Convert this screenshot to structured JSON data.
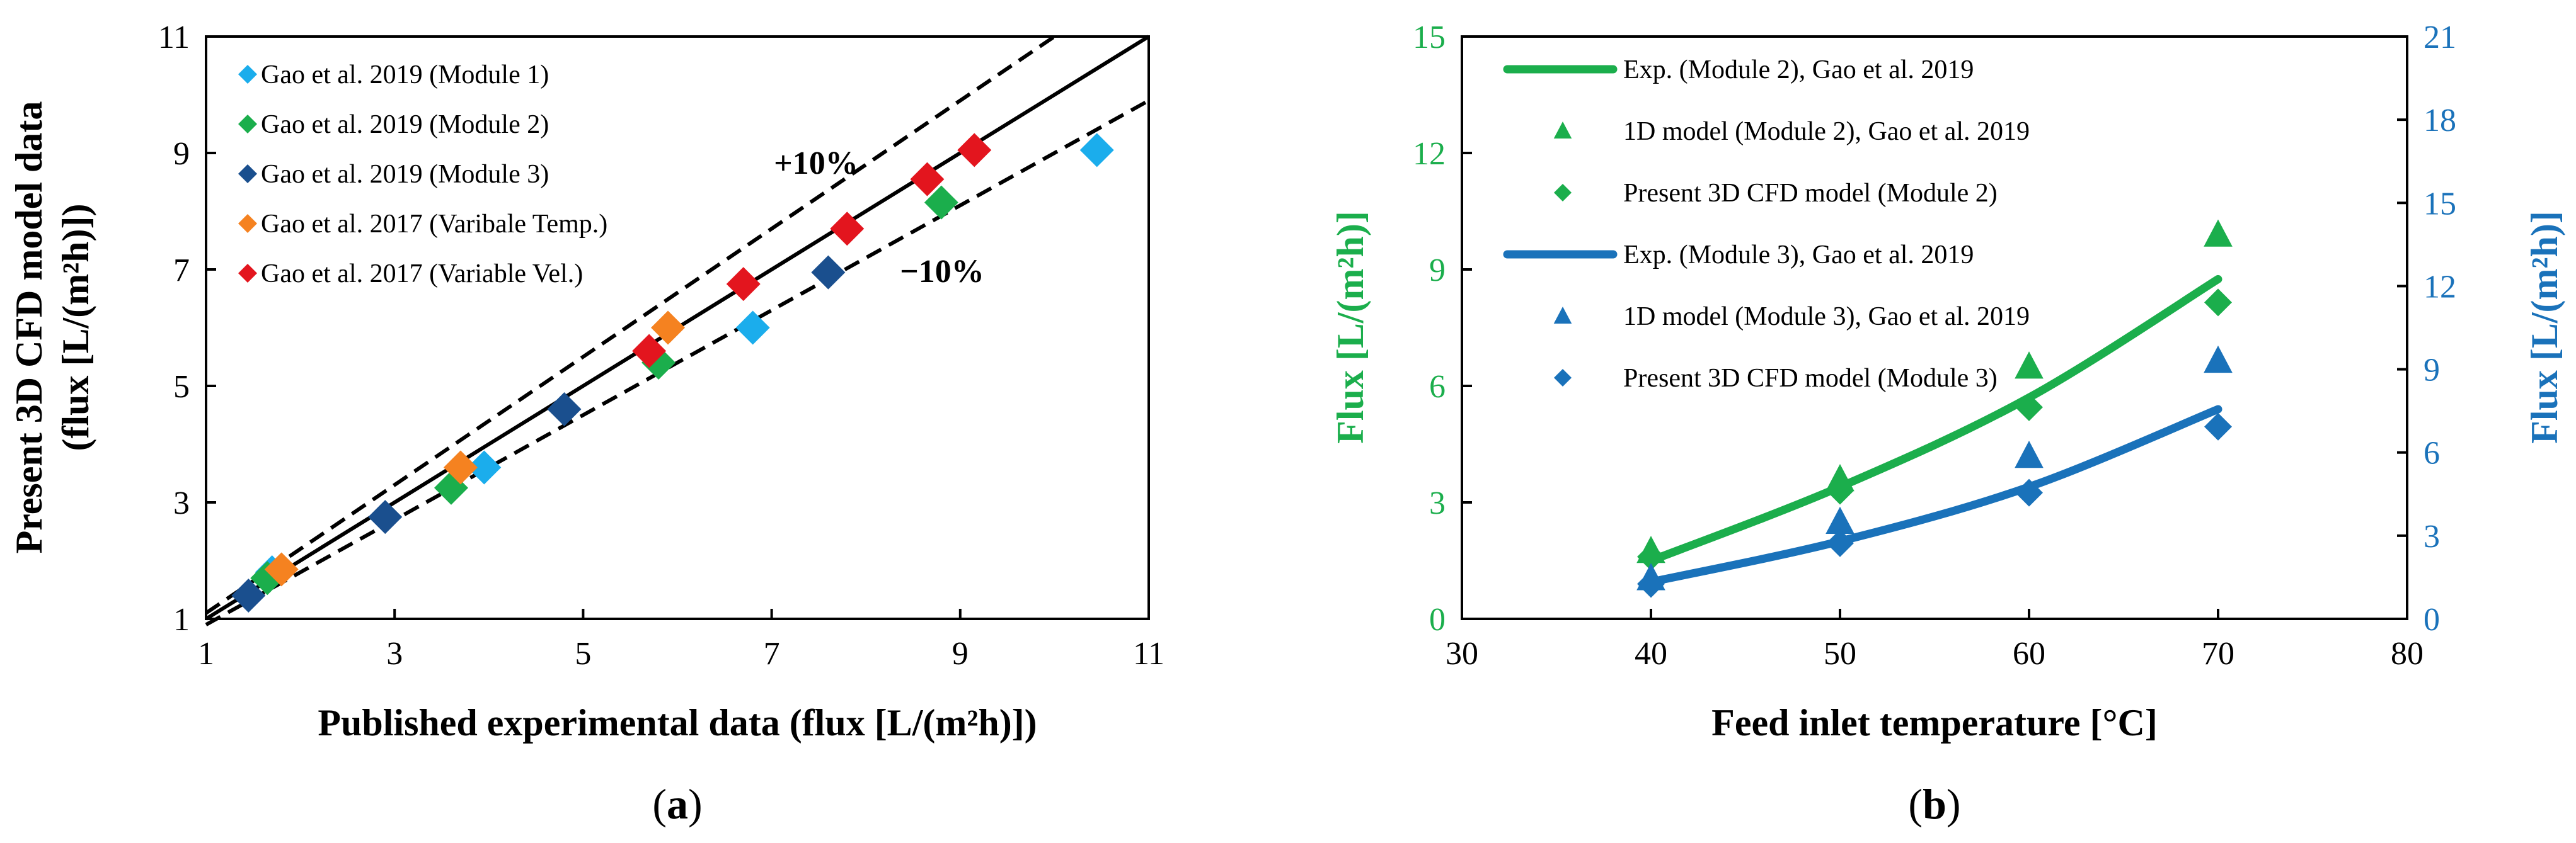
{
  "chart_data": [
    {
      "type": "scatter",
      "panel_label": "a",
      "xlabel": "Published experimental data (flux [L/(m²h)])",
      "ylabel_line1": "Present 3D CFD model data",
      "ylabel_line2": "(flux [L/(m²h)])",
      "xlim": [
        1,
        11
      ],
      "ylim": [
        1,
        11
      ],
      "xticks": [
        "1",
        "3",
        "5",
        "7",
        "9",
        "11"
      ],
      "yticks": [
        "1",
        "3",
        "5",
        "7",
        "9",
        "11"
      ],
      "legend_position": "top-left",
      "reference_lines": [
        {
          "label": "",
          "slope": 1.0,
          "style": "solid"
        },
        {
          "label": "+10%",
          "slope": 1.1,
          "style": "dashed"
        },
        {
          "label": "−10%",
          "slope": 0.9,
          "style": "dashed"
        }
      ],
      "series": [
        {
          "name": "Gao et al. 2019 (Module 1)",
          "color": "#1BADEC",
          "marker": "diamond",
          "points": [
            [
              1.7,
              1.8
            ],
            [
              3.95,
              3.6
            ],
            [
              6.8,
              6.0
            ],
            [
              10.45,
              9.05
            ]
          ]
        },
        {
          "name": "Gao et al. 2019 (Module 2)",
          "color": "#1BAE4C",
          "marker": "diamond",
          "points": [
            [
              1.65,
              1.7
            ],
            [
              3.6,
              3.25
            ],
            [
              5.8,
              5.4
            ],
            [
              8.8,
              8.15
            ]
          ]
        },
        {
          "name": "Gao et al. 2019 (Module 3)",
          "color": "#1A4F8E",
          "marker": "diamond",
          "points": [
            [
              1.45,
              1.4
            ],
            [
              2.9,
              2.75
            ],
            [
              4.8,
              4.6
            ],
            [
              7.6,
              6.95
            ]
          ]
        },
        {
          "name": "Gao et al. 2017 (Varibale Temp.)",
          "color": "#F58220",
          "marker": "diamond",
          "points": [
            [
              1.8,
              1.85
            ],
            [
              3.7,
              3.6
            ],
            [
              5.9,
              6.0
            ]
          ]
        },
        {
          "name": "Gao et al. 2017 (Variable Vel.)",
          "color": "#E3151E",
          "marker": "diamond",
          "points": [
            [
              5.7,
              5.6
            ],
            [
              6.7,
              6.75
            ],
            [
              7.8,
              7.7
            ],
            [
              8.65,
              8.55
            ],
            [
              9.15,
              9.05
            ]
          ]
        }
      ]
    },
    {
      "type": "line",
      "panel_label": "b",
      "xlabel": "Feed inlet temperature [°C]",
      "ylabel_left": "Flux [L/(m²h)]",
      "ylabel_right": "Flux [L/(m²h)]",
      "xlim": [
        30,
        80
      ],
      "ylim_left": [
        0,
        15
      ],
      "ylim_right": [
        0,
        21
      ],
      "xticks": [
        "30",
        "40",
        "50",
        "60",
        "70",
        "80"
      ],
      "yticks_left": [
        "0",
        "3",
        "6",
        "9",
        "12",
        "15"
      ],
      "yticks_right": [
        "0",
        "3",
        "6",
        "9",
        "12",
        "15",
        "18",
        "21"
      ],
      "left_axis_color": "#1BAE4C",
      "right_axis_color": "#1A72BA",
      "legend_position": "top-left",
      "series": [
        {
          "name": "Exp. (Module 2), Gao et al. 2019",
          "kind": "line",
          "color": "#1BAE4C",
          "x": [
            40,
            50,
            60,
            70
          ],
          "y": [
            1.5,
            3.4,
            5.7,
            8.75
          ]
        },
        {
          "name": "1D model (Module 2), Gao et al. 2019",
          "kind": "triangle",
          "color": "#1BAE4C",
          "x": [
            40,
            50,
            60,
            70
          ],
          "y": [
            1.75,
            3.6,
            6.5,
            9.9
          ]
        },
        {
          "name": "Present 3D CFD model (Module 2)",
          "kind": "diamond",
          "color": "#1BAE4C",
          "x": [
            40,
            50,
            60,
            70
          ],
          "y": [
            1.6,
            3.3,
            5.45,
            8.15
          ]
        },
        {
          "name": "Exp. (Module 3), Gao et al. 2019",
          "kind": "line",
          "color": "#1A72BA",
          "x": [
            40,
            50,
            60,
            70
          ],
          "y": [
            0.95,
            2.0,
            3.4,
            5.4
          ]
        },
        {
          "name": "1D model (Module 3), Gao et al. 2019",
          "kind": "triangle",
          "color": "#1A72BA",
          "x": [
            40,
            50,
            60,
            70
          ],
          "y": [
            1.05,
            2.5,
            4.2,
            6.65
          ]
        },
        {
          "name": "Present 3D CFD model (Module 3)",
          "kind": "diamond",
          "color": "#1A72BA",
          "x": [
            40,
            50,
            60,
            70
          ],
          "y": [
            0.9,
            1.95,
            3.25,
            4.95
          ]
        }
      ]
    }
  ]
}
